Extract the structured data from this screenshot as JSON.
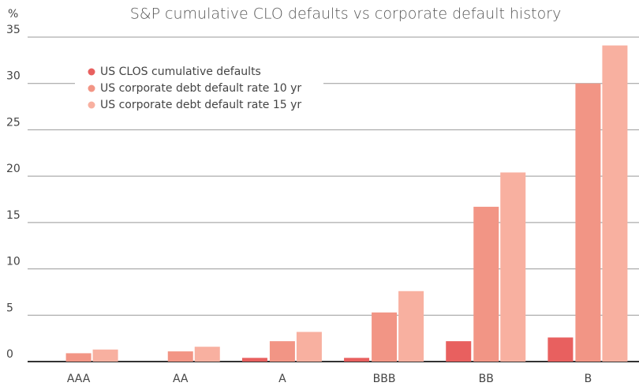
{
  "chart_data": {
    "type": "bar",
    "title": "S&P cumulative CLO defaults vs corporate default history",
    "y_label": "%",
    "categories": [
      "AAA",
      "AA",
      "A",
      "BBB",
      "BB",
      "B"
    ],
    "series": [
      {
        "name": "US CLOS cumulative defaults",
        "color": "#e8605f",
        "values": [
          0,
          0,
          0.4,
          0.4,
          2.2,
          2.6
        ]
      },
      {
        "name": "US corporate debt default rate 10 yr",
        "color": "#f29585",
        "values": [
          0.9,
          1.1,
          2.2,
          5.3,
          16.7,
          30.0
        ]
      },
      {
        "name": "US corporate debt default rate 15 yr",
        "color": "#f8b0a0",
        "values": [
          1.3,
          1.6,
          3.2,
          7.6,
          20.4,
          34.1
        ]
      }
    ],
    "ylim": [
      0,
      35
    ],
    "yticks": [
      0,
      5,
      10,
      15,
      20,
      25,
      30,
      35
    ],
    "grid": true,
    "legend": "upper left"
  }
}
